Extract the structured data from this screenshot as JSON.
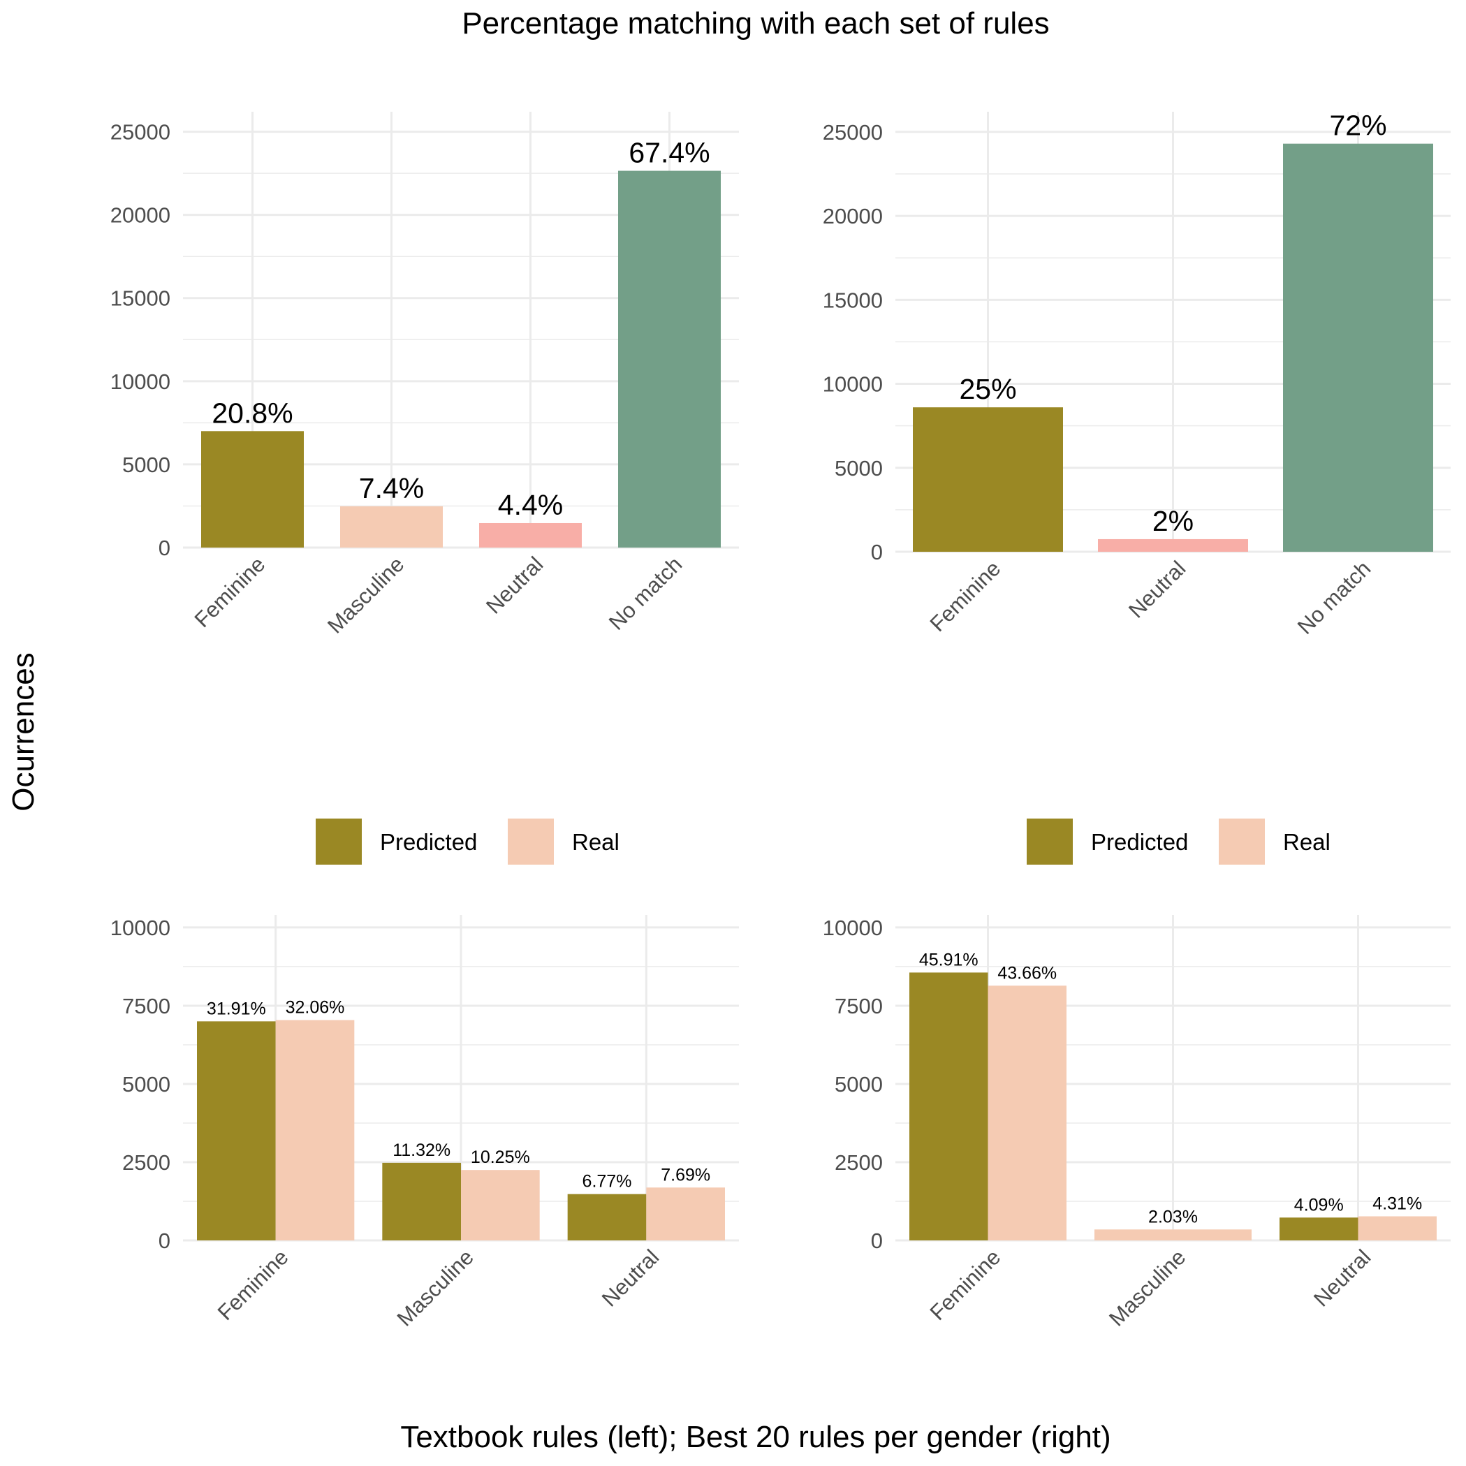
{
  "title": "Percentage matching with each set of rules",
  "xlabel": "Textbook rules (left); Best 20 rules per gender (right)",
  "ylabel": "Ocurrences",
  "colors": {
    "Feminine": "#9a8824",
    "Masculine": "#f5cbb3",
    "Neutral": "#f8aea7",
    "No match": "#739f88",
    "Predicted": "#9a8824",
    "Real": "#f5cbb3"
  },
  "legends": [
    {
      "items": [
        "Predicted",
        "Real"
      ]
    },
    {
      "items": [
        "Predicted",
        "Real"
      ]
    }
  ],
  "chart_data": [
    {
      "type": "bar",
      "panel": "top-left",
      "categories": [
        "Feminine",
        "Masculine",
        "Neutral",
        "No match"
      ],
      "values": [
        7000,
        2480,
        1470,
        22650
      ],
      "labels": [
        "20.8%",
        "7.4%",
        "4.4%",
        "67.4%"
      ],
      "ylim": [
        0,
        26200
      ],
      "yticks": [
        0,
        5000,
        10000,
        15000,
        20000,
        25000
      ],
      "ytick_labels": [
        "0",
        "5000",
        "10000",
        "15000",
        "20000",
        "25000"
      ]
    },
    {
      "type": "bar",
      "panel": "top-right",
      "categories": [
        "Feminine",
        "Neutral",
        "No match"
      ],
      "values": [
        8600,
        750,
        24300
      ],
      "labels": [
        "25%",
        "2%",
        "72%"
      ],
      "ylim": [
        0,
        26200
      ],
      "yticks": [
        0,
        5000,
        10000,
        15000,
        20000,
        25000
      ],
      "ytick_labels": [
        "0",
        "5000",
        "10000",
        "15000",
        "20000",
        "25000"
      ]
    },
    {
      "type": "bar",
      "panel": "bottom-left",
      "categories": [
        "Feminine",
        "Masculine",
        "Neutral"
      ],
      "series": [
        {
          "name": "Predicted",
          "values": [
            7000,
            2480,
            1480
          ],
          "labels": [
            "31.91%",
            "11.32%",
            "6.77%"
          ]
        },
        {
          "name": "Real",
          "values": [
            7040,
            2250,
            1690
          ],
          "labels": [
            "32.06%",
            "10.25%",
            "7.69%"
          ]
        }
      ],
      "ylim": [
        0,
        10400
      ],
      "yticks": [
        0,
        2500,
        5000,
        7500,
        10000
      ],
      "ytick_labels": [
        "0",
        "2500",
        "5000",
        "7500",
        "10000"
      ]
    },
    {
      "type": "bar",
      "panel": "bottom-right",
      "categories": [
        "Feminine",
        "Masculine",
        "Neutral"
      ],
      "series": [
        {
          "name": "Predicted",
          "values": [
            8560,
            null,
            730
          ],
          "labels": [
            "45.91%",
            null,
            "4.09%"
          ]
        },
        {
          "name": "Real",
          "values": [
            8140,
            350,
            770
          ],
          "labels": [
            "43.66%",
            "2.03%",
            "4.31%"
          ]
        }
      ],
      "ylim": [
        0,
        10400
      ],
      "yticks": [
        0,
        2500,
        5000,
        7500,
        10000
      ],
      "ytick_labels": [
        "0",
        "2500",
        "5000",
        "7500",
        "10000"
      ]
    }
  ]
}
